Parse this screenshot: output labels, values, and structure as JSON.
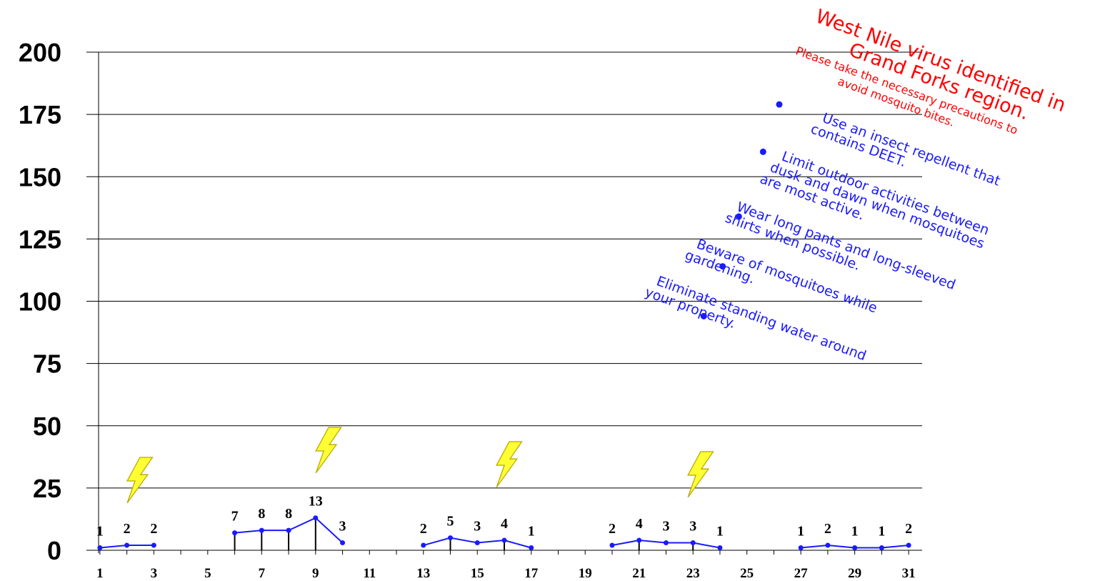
{
  "chart_data": {
    "type": "line",
    "ylim": [
      0,
      200
    ],
    "yticks": [
      "0",
      "25",
      "50",
      "75",
      "100",
      "125",
      "150",
      "175",
      "200"
    ],
    "xlim": [
      0.5,
      31.5
    ],
    "xticks": [
      "1",
      "3",
      "5",
      "7",
      "9",
      "11",
      "13",
      "15",
      "17",
      "19",
      "21",
      "23",
      "25",
      "27",
      "29",
      "31"
    ],
    "grid": true,
    "segments": [
      {
        "x": [
          1,
          2,
          3
        ],
        "y": [
          1,
          2,
          2
        ],
        "labels": [
          "1",
          "2",
          "2"
        ]
      },
      {
        "x": [
          6,
          7,
          8,
          9,
          10
        ],
        "y": [
          7,
          8,
          8,
          13,
          3
        ],
        "labels": [
          "7",
          "8",
          "8",
          "13",
          "3"
        ]
      },
      {
        "x": [
          13,
          14,
          15,
          16,
          17
        ],
        "y": [
          2,
          5,
          3,
          4,
          1
        ],
        "labels": [
          "2",
          "5",
          "3",
          "4",
          "1"
        ]
      },
      {
        "x": [
          20,
          21,
          22,
          23,
          24
        ],
        "y": [
          2,
          4,
          3,
          3,
          1
        ],
        "labels": [
          "2",
          "4",
          "3",
          "3",
          "1"
        ]
      },
      {
        "x": [
          27,
          28,
          29,
          30,
          31
        ],
        "y": [
          1,
          2,
          1,
          1,
          2
        ],
        "labels": [
          "1",
          "2",
          "1",
          "1",
          "2"
        ]
      }
    ],
    "stems_at_x": [
      6,
      7,
      8,
      9,
      14,
      16,
      21,
      23
    ],
    "outlier_points": [
      {
        "x": 23.4,
        "y": 94
      },
      {
        "x": 24.1,
        "y": 114
      },
      {
        "x": 24.7,
        "y": 134
      },
      {
        "x": 25.6,
        "y": 160
      },
      {
        "x": 26.2,
        "y": 179
      }
    ],
    "lightning_at_x": [
      2.5,
      9.5,
      16.2,
      23.3
    ],
    "colors": {
      "series": "#1a1aff",
      "warning": "#ff0000",
      "bolt": "#ffff33"
    }
  },
  "annotations": {
    "warning_line1": "West Nile virus identified in",
    "warning_line2": "Grand Forks region.",
    "precaution_line1": "Please take the necessary precautions to",
    "precaution_line2": "avoid mosquito bites.",
    "tips": [
      [
        "Use an insect repellent that",
        "contains DEET."
      ],
      [
        "Limit outdoor activities between",
        "dusk and dawn when mosquitoes",
        "are most active."
      ],
      [
        "Wear long pants and long-sleeved",
        "shirts when possible."
      ],
      [
        "Beware of mosquitoes while",
        "gardening."
      ],
      [
        "Eliminate standing water around",
        "your property."
      ]
    ]
  }
}
